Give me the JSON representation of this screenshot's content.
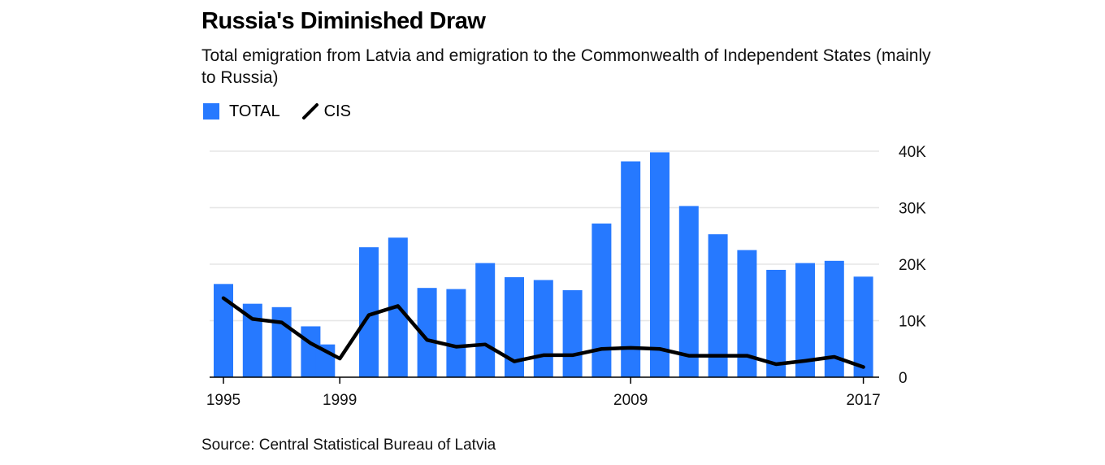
{
  "header": {
    "title": "Russia's Diminished Draw",
    "subtitle": "Total emigration from Latvia and emigration to the Commonwealth of Independent States (mainly to Russia)"
  },
  "legend": {
    "items": [
      {
        "label": "TOTAL",
        "kind": "bar",
        "color": "#2679ff"
      },
      {
        "label": "CIS",
        "kind": "line",
        "color": "#000000"
      }
    ],
    "placement": "top-left"
  },
  "source": "Source: Central Statistical Bureau of Latvia",
  "chart_data": {
    "type": "bar",
    "title": "Russia's Diminished Draw",
    "subtitle": "Total emigration from Latvia and emigration to the Commonwealth of Independent States (mainly to Russia)",
    "x": [
      1995,
      1996,
      1997,
      1998,
      1999,
      2000,
      2001,
      2002,
      2003,
      2004,
      2005,
      2006,
      2007,
      2008,
      2009,
      2010,
      2011,
      2012,
      2013,
      2014,
      2015,
      2016,
      2017
    ],
    "series": [
      {
        "name": "TOTAL",
        "type": "bar",
        "color": "#2679ff",
        "values": [
          16500,
          13000,
          12400,
          9000,
          null,
          23000,
          24700,
          15800,
          15600,
          20200,
          17700,
          17200,
          15400,
          27200,
          38200,
          39800,
          30300,
          25300,
          22500,
          19000,
          20200,
          20600,
          17800
        ]
      },
      {
        "name": "CIS",
        "type": "line",
        "color": "#000000",
        "values": [
          14000,
          10300,
          9700,
          6000,
          3300,
          11000,
          12600,
          6600,
          5400,
          5800,
          2800,
          3900,
          3900,
          5000,
          5200,
          5000,
          3800,
          3800,
          3800,
          2300,
          2900,
          3600,
          1800
        ]
      }
    ],
    "partial_bar": {
      "x": 1998.5,
      "value": 5800
    },
    "x_ticks": [
      1995,
      1999,
      2009,
      2017
    ],
    "y_ticks": [
      0,
      10000,
      20000,
      30000,
      40000
    ],
    "y_tick_labels": [
      "0",
      "10K",
      "20K",
      "30K",
      "40K"
    ],
    "ylim": [
      0,
      40000
    ],
    "y_axis_side": "right",
    "grid": true,
    "xlabel": "",
    "ylabel": ""
  }
}
